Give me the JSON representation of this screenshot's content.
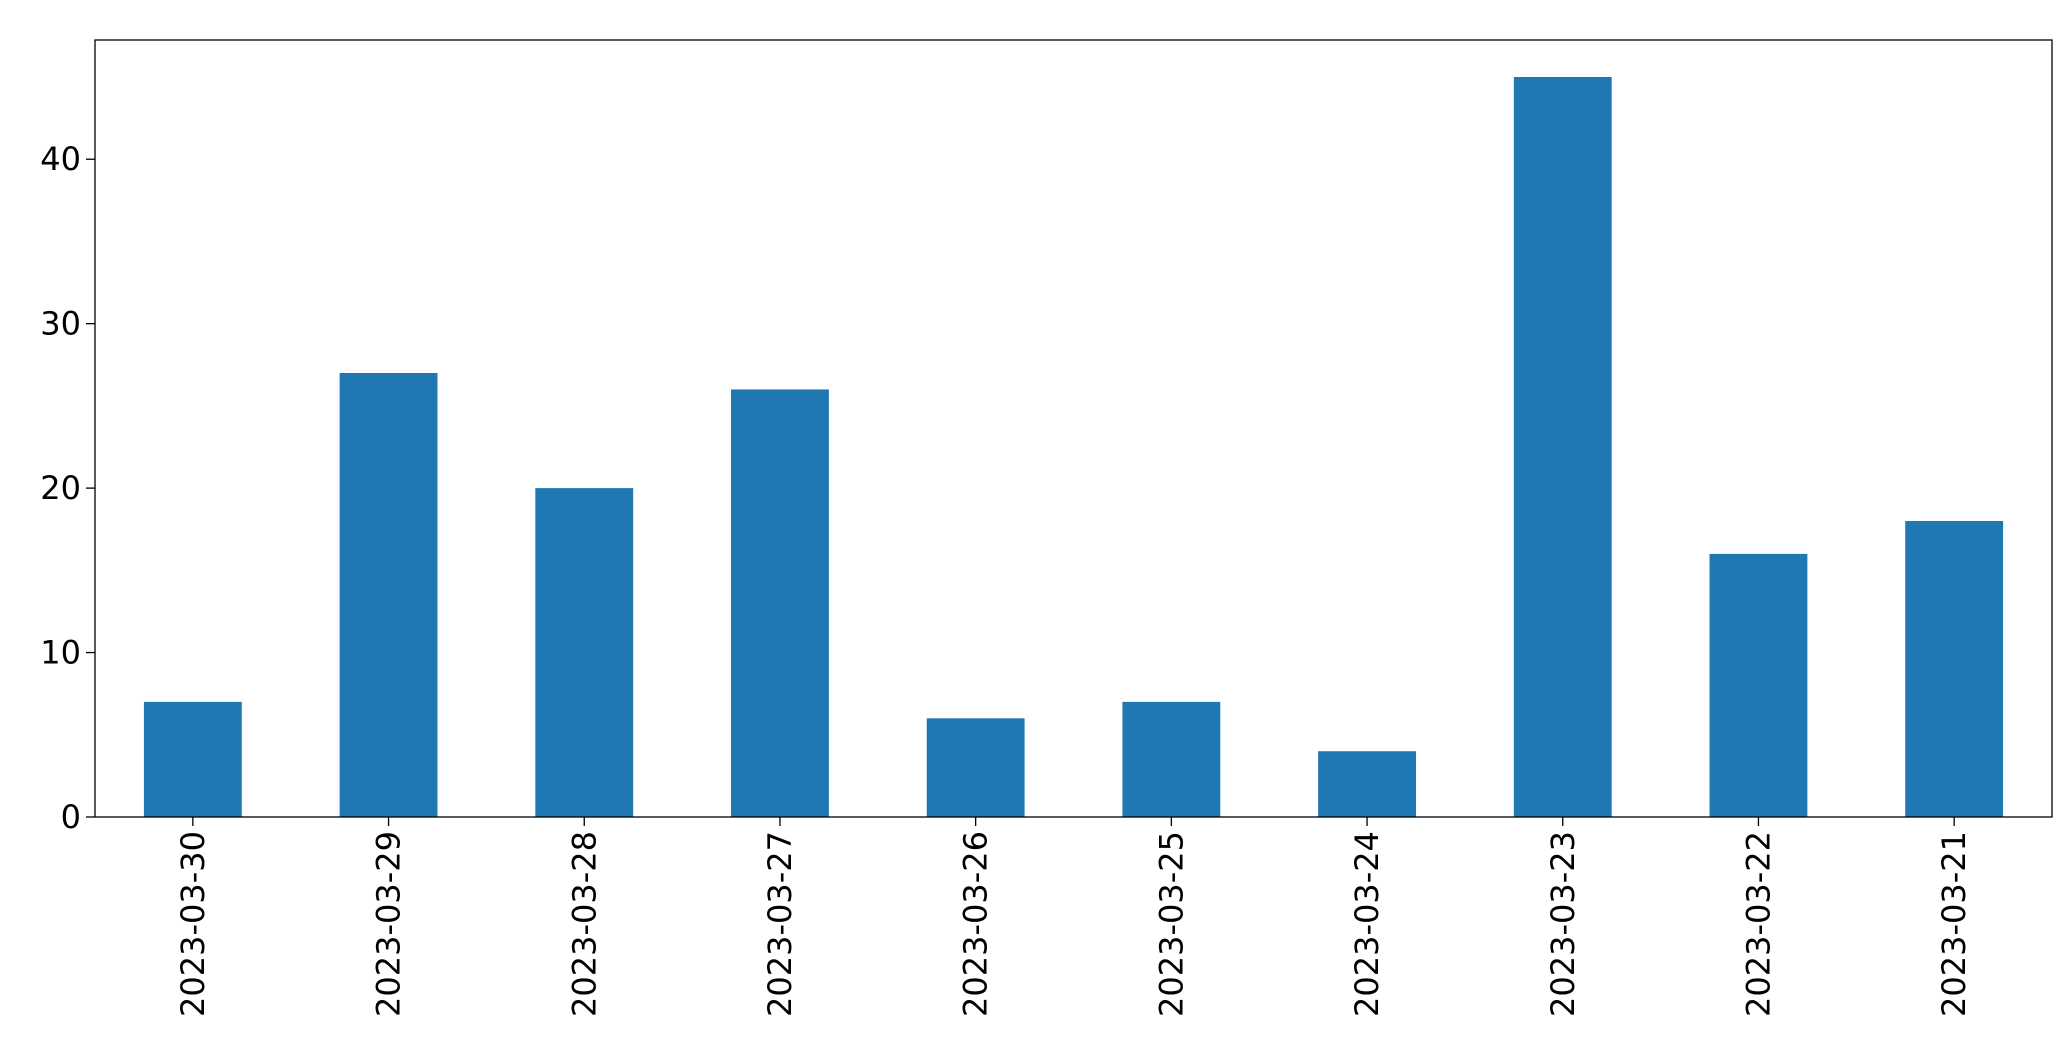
{
  "chart_data": {
    "type": "bar",
    "categories": [
      "2023-03-30",
      "2023-03-29",
      "2023-03-28",
      "2023-03-27",
      "2023-03-26",
      "2023-03-25",
      "2023-03-24",
      "2023-03-23",
      "2023-03-22",
      "2023-03-21"
    ],
    "values": [
      7,
      27,
      20,
      26,
      6,
      7,
      4,
      45,
      16,
      18
    ],
    "color": "#1f77b4",
    "ylim": [
      0,
      47.25
    ],
    "yticks": [
      0,
      10,
      20,
      30,
      40
    ],
    "grid": false
  }
}
